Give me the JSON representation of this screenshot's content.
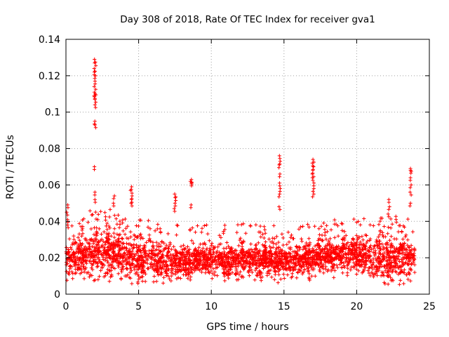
{
  "chart_data": {
    "type": "scatter",
    "title": "Day 308 of 2018, Rate Of TEC Index for receiver gva1",
    "xlabel": "GPS time / hours",
    "ylabel": "ROTI / TECUs",
    "xlim": [
      0,
      25
    ],
    "ylim": [
      0,
      0.14
    ],
    "xticks": [
      "0",
      "5",
      "10",
      "15",
      "20",
      "25"
    ],
    "yticks": [
      "0",
      "0.02",
      "0.04",
      "0.06",
      "0.08",
      "0.1",
      "0.12",
      "0.14"
    ],
    "grid": true,
    "marker": "plus",
    "color": "#ff0000",
    "baseline_envelope": {
      "x": [
        0,
        1,
        2,
        3,
        4,
        5,
        6,
        7,
        8,
        9,
        10,
        11,
        12,
        13,
        14,
        15,
        16,
        17,
        18,
        19,
        20,
        21,
        22,
        23,
        24
      ],
      "typical_low": [
        0.012,
        0.012,
        0.012,
        0.012,
        0.011,
        0.01,
        0.01,
        0.01,
        0.011,
        0.012,
        0.012,
        0.012,
        0.012,
        0.012,
        0.011,
        0.011,
        0.012,
        0.012,
        0.014,
        0.014,
        0.013,
        0.012,
        0.01,
        0.01,
        0.012
      ],
      "typical_high": [
        0.028,
        0.03,
        0.036,
        0.035,
        0.032,
        0.03,
        0.028,
        0.026,
        0.026,
        0.026,
        0.026,
        0.026,
        0.027,
        0.027,
        0.026,
        0.026,
        0.026,
        0.028,
        0.029,
        0.03,
        0.03,
        0.029,
        0.031,
        0.031,
        0.028
      ]
    },
    "spikes": [
      {
        "x": 0.1,
        "y": [
          0.038,
          0.041,
          0.045,
          0.049
        ]
      },
      {
        "x": 2.0,
        "y": [
          0.093,
          0.095,
          0.104,
          0.107,
          0.109,
          0.11,
          0.111,
          0.114,
          0.117,
          0.12,
          0.122,
          0.124,
          0.127,
          0.129
        ]
      },
      {
        "x": 2.0,
        "y": [
          0.052,
          0.056,
          0.07
        ]
      },
      {
        "x": 3.3,
        "y": [
          0.05,
          0.054
        ]
      },
      {
        "x": 4.5,
        "y": [
          0.05,
          0.052,
          0.054,
          0.057,
          0.059
        ]
      },
      {
        "x": 7.5,
        "y": [
          0.047,
          0.05,
          0.053,
          0.055
        ]
      },
      {
        "x": 8.6,
        "y": [
          0.049,
          0.061,
          0.062,
          0.063
        ]
      },
      {
        "x": 14.7,
        "y": [
          0.048,
          0.055,
          0.058,
          0.061,
          0.066,
          0.071,
          0.073,
          0.076
        ]
      },
      {
        "x": 17.0,
        "y": [
          0.055,
          0.058,
          0.061,
          0.064,
          0.066,
          0.068,
          0.07,
          0.072,
          0.074
        ]
      },
      {
        "x": 22.2,
        "y": [
          0.044,
          0.048,
          0.052
        ]
      },
      {
        "x": 23.7,
        "y": [
          0.05,
          0.056,
          0.06,
          0.064,
          0.068,
          0.069
        ]
      }
    ]
  }
}
